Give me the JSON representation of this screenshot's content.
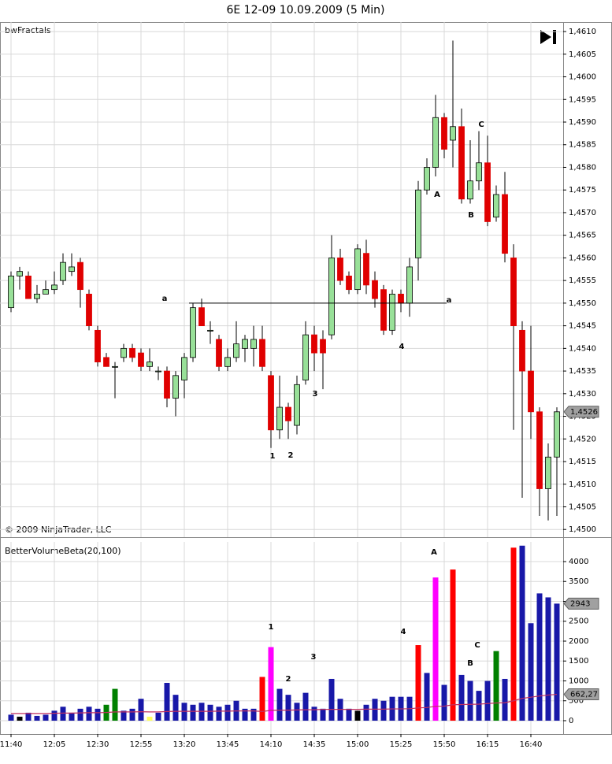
{
  "title": "6E 12-09  10.09.2009 (5 Min)",
  "chart_data": [
    {
      "type": "candlestick",
      "panel_label": "bwFractals",
      "footer": "© 2009 NinjaTrader, LLC",
      "up_color": "#98e098",
      "down_color": "#e00000",
      "open": [
        1.4549,
        1.4556,
        1.4556,
        1.4551,
        1.4552,
        1.4553,
        1.4555,
        1.4557,
        1.4559,
        1.4552,
        1.4544,
        1.4538,
        1.4536,
        1.4538,
        1.454,
        1.4539,
        1.4536,
        1.4535,
        1.4535,
        1.4529,
        1.4533,
        1.4538,
        1.4549,
        1.4544,
        1.4542,
        1.4536,
        1.4538,
        1.454,
        1.454,
        1.4542,
        1.4534,
        1.4522,
        1.4527,
        1.4523,
        1.4533,
        1.4543,
        1.4542,
        1.4543,
        1.456,
        1.4556,
        1.4553,
        1.4561,
        1.4555,
        1.4553,
        1.4544,
        1.4552,
        1.455,
        1.456,
        1.4575,
        1.458,
        1.4591,
        1.4586,
        1.4589,
        1.4573,
        1.4577,
        1.4581,
        1.4569,
        1.4574,
        1.456,
        1.4544,
        1.4535,
        1.4526,
        1.4509,
        1.4516
      ],
      "high": [
        1.4557,
        1.4558,
        1.4557,
        1.4554,
        1.4555,
        1.4557,
        1.4561,
        1.4561,
        1.456,
        1.4553,
        1.4545,
        1.4539,
        1.4537,
        1.4541,
        1.4541,
        1.454,
        1.454,
        1.4536,
        1.4536,
        1.4535,
        1.4539,
        1.455,
        1.4551,
        1.4546,
        1.4543,
        1.454,
        1.4546,
        1.4543,
        1.4545,
        1.4545,
        1.4535,
        1.4534,
        1.4528,
        1.4534,
        1.4546,
        1.4545,
        1.4544,
        1.4565,
        1.4562,
        1.4557,
        1.4563,
        1.4564,
        1.4557,
        1.4554,
        1.4553,
        1.4553,
        1.456,
        1.4577,
        1.4582,
        1.4596,
        1.4592,
        1.4608,
        1.4593,
        1.4586,
        1.4588,
        1.4587,
        1.4576,
        1.4579,
        1.4563,
        1.4546,
        1.4545,
        1.4527,
        1.4519,
        1.4527
      ],
      "low": [
        1.4548,
        1.4553,
        1.4551,
        1.455,
        1.4552,
        1.4552,
        1.4554,
        1.4556,
        1.4549,
        1.4544,
        1.4536,
        1.4536,
        1.4529,
        1.4537,
        1.4537,
        1.4535,
        1.4535,
        1.4533,
        1.4527,
        1.4525,
        1.4529,
        1.4537,
        1.4545,
        1.4541,
        1.4535,
        1.4535,
        1.4537,
        1.4537,
        1.4536,
        1.4535,
        1.4518,
        1.452,
        1.452,
        1.4521,
        1.4532,
        1.4535,
        1.4531,
        1.4542,
        1.4554,
        1.4552,
        1.4552,
        1.4552,
        1.4549,
        1.4543,
        1.4543,
        1.4548,
        1.4547,
        1.4555,
        1.4574,
        1.4578,
        1.4582,
        1.458,
        1.4572,
        1.4572,
        1.4575,
        1.4567,
        1.4568,
        1.4559,
        1.4522,
        1.4507,
        1.452,
        1.4503,
        1.4502,
        1.4503
      ],
      "close": [
        1.4556,
        1.4557,
        1.4551,
        1.4552,
        1.4553,
        1.4554,
        1.4559,
        1.4558,
        1.4553,
        1.4545,
        1.4537,
        1.4536,
        1.4536,
        1.454,
        1.4538,
        1.4536,
        1.4537,
        1.4535,
        1.4529,
        1.4534,
        1.4538,
        1.4549,
        1.4545,
        1.4544,
        1.4536,
        1.4538,
        1.4541,
        1.4542,
        1.4542,
        1.4536,
        1.4522,
        1.4527,
        1.4524,
        1.4532,
        1.4543,
        1.4539,
        1.4539,
        1.456,
        1.4555,
        1.4553,
        1.4562,
        1.4554,
        1.4551,
        1.4544,
        1.4552,
        1.455,
        1.4558,
        1.4575,
        1.458,
        1.4591,
        1.4584,
        1.4589,
        1.4573,
        1.4577,
        1.4581,
        1.4568,
        1.4574,
        1.4561,
        1.4545,
        1.4535,
        1.4526,
        1.4509,
        1.4516,
        1.4526
      ],
      "last_label": "1,4526",
      "level": 1.455,
      "annotations": [
        "a",
        "a",
        "1",
        "2",
        "3",
        "4",
        "A",
        "B",
        "C"
      ],
      "ylim": [
        1.44983,
        1.46121
      ],
      "yticks": [
        {
          "value": 1.45,
          "label": "1,4500"
        },
        {
          "value": 1.4505,
          "label": "1,4505"
        },
        {
          "value": 1.451,
          "label": "1,4510"
        },
        {
          "value": 1.4515,
          "label": "1,4515"
        },
        {
          "value": 1.452,
          "label": "1,4520"
        },
        {
          "value": 1.4525,
          "label": "1,4525"
        },
        {
          "value": 1.453,
          "label": "1,4530"
        },
        {
          "value": 1.4535,
          "label": "1,4535"
        },
        {
          "value": 1.454,
          "label": "1,4540"
        },
        {
          "value": 1.4545,
          "label": "1,4545"
        },
        {
          "value": 1.455,
          "label": "1,4550"
        },
        {
          "value": 1.4555,
          "label": "1,4555"
        },
        {
          "value": 1.456,
          "label": "1,4560"
        },
        {
          "value": 1.4565,
          "label": "1,4565"
        },
        {
          "value": 1.457,
          "label": "1,4570"
        },
        {
          "value": 1.4575,
          "label": "1,4575"
        },
        {
          "value": 1.458,
          "label": "1,4580"
        },
        {
          "value": 1.4585,
          "label": "1,4585"
        },
        {
          "value": 1.459,
          "label": "1,4590"
        },
        {
          "value": 1.4595,
          "label": "1,4595"
        },
        {
          "value": 1.46,
          "label": "1,4600"
        },
        {
          "value": 1.4605,
          "label": "1,4605"
        },
        {
          "value": 1.461,
          "label": "1,4610"
        }
      ],
      "grid": true
    },
    {
      "type": "bar",
      "panel_label": "BetterVolumeBeta(20,100)",
      "categories": [
        "11:40",
        null,
        null,
        null,
        null,
        "12:05",
        null,
        null,
        null,
        null,
        "12:30",
        null,
        null,
        null,
        null,
        "12:55",
        null,
        null,
        null,
        null,
        "13:20",
        null,
        null,
        null,
        null,
        "13:45",
        null,
        null,
        null,
        null,
        "14:10",
        null,
        null,
        null,
        null,
        "14:35",
        null,
        null,
        null,
        null,
        "15:00",
        null,
        null,
        null,
        null,
        "15:25",
        null,
        null,
        null,
        null,
        "15:50",
        null,
        null,
        null,
        null,
        "16:15",
        null,
        null,
        null,
        null,
        "16:40",
        null,
        null,
        null
      ],
      "values": [
        150,
        100,
        200,
        120,
        150,
        250,
        350,
        200,
        300,
        350,
        300,
        400,
        800,
        250,
        300,
        550,
        100,
        200,
        950,
        650,
        450,
        400,
        450,
        400,
        350,
        400,
        500,
        300,
        300,
        1100,
        1850,
        800,
        650,
        450,
        700,
        350,
        300,
        1050,
        550,
        300,
        250,
        400,
        550,
        500,
        600,
        600,
        600,
        1900,
        1200,
        3600,
        900,
        3800,
        1150,
        1000,
        750,
        1000,
        1750,
        1050,
        4350,
        4400,
        2450,
        3200,
        3100,
        2943
      ],
      "colors": [
        "#1818a8",
        "#000000",
        "#1818a8",
        "#1818a8",
        "#1818a8",
        "#1818a8",
        "#1818a8",
        "#1818a8",
        "#1818a8",
        "#1818a8",
        "#1818a8",
        "#008000",
        "#008000",
        "#1818a8",
        "#1818a8",
        "#1818a8",
        "#ffff60",
        "#1818a8",
        "#1818a8",
        "#1818a8",
        "#1818a8",
        "#1818a8",
        "#1818a8",
        "#1818a8",
        "#1818a8",
        "#1818a8",
        "#1818a8",
        "#1818a8",
        "#1818a8",
        "#ff0000",
        "#ff00ff",
        "#1818a8",
        "#1818a8",
        "#1818a8",
        "#1818a8",
        "#1818a8",
        "#1818a8",
        "#1818a8",
        "#1818a8",
        "#1818a8",
        "#000000",
        "#1818a8",
        "#1818a8",
        "#1818a8",
        "#1818a8",
        "#1818a8",
        "#1818a8",
        "#ff0000",
        "#1818a8",
        "#ff00ff",
        "#1818a8",
        "#ff0000",
        "#1818a8",
        "#1818a8",
        "#1818a8",
        "#1818a8",
        "#008000",
        "#1818a8",
        "#ff0000",
        "#1818a8",
        "#1818a8",
        "#1818a8",
        "#1818a8",
        "#1818a8"
      ],
      "average": {
        "color": "#c03060",
        "values": [
          180,
          180,
          180,
          180,
          180,
          185,
          190,
          190,
          195,
          200,
          200,
          205,
          220,
          220,
          220,
          225,
          220,
          220,
          230,
          235,
          235,
          235,
          235,
          235,
          240,
          240,
          245,
          245,
          245,
          230,
          260,
          265,
          265,
          270,
          275,
          275,
          285,
          285,
          285,
          285,
          285,
          290,
          290,
          290,
          295,
          295,
          300,
          320,
          330,
          360,
          365,
          400,
          405,
          410,
          415,
          430,
          445,
          450,
          500,
          560,
          590,
          620,
          645,
          662.27
        ],
        "last_label": "662,27"
      },
      "annotations": [
        "A",
        "1",
        "2",
        "3",
        "4",
        "B",
        "C"
      ],
      "ylim": [
        -337,
        4495
      ],
      "yticks": [
        0,
        500,
        1000,
        1500,
        2000,
        2500,
        3000,
        3500,
        4000
      ],
      "grid": true
    }
  ]
}
